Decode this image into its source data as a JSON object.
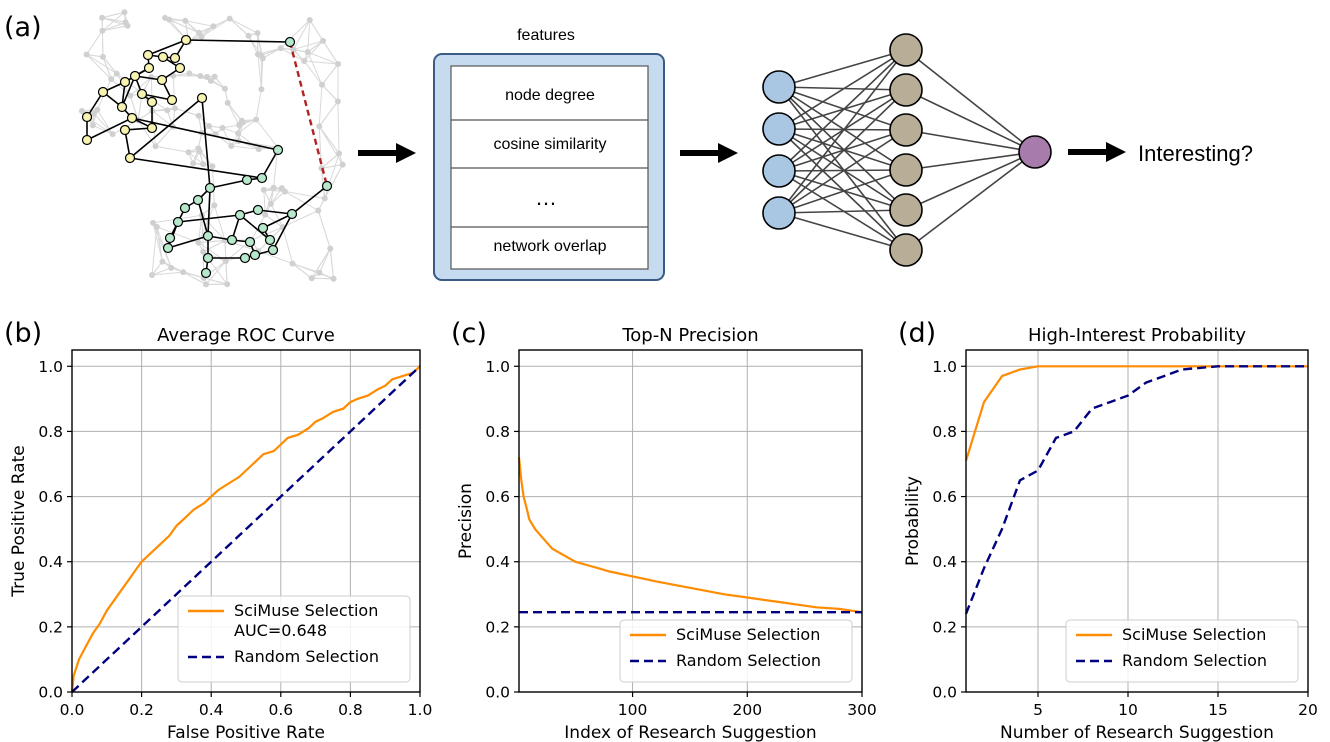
{
  "panel_a": {
    "label": "(a)",
    "features_title": "features",
    "features": [
      "node degree",
      "cosine similarity",
      "…",
      "network overlap"
    ],
    "output_label": "Interesting?",
    "colors": {
      "node_yellow": "#f7f3b0",
      "node_green": "#b8e8cc",
      "missing_edge": "#b22222",
      "input_node": "#a9c6e3",
      "hidden_node": "#b8ae98",
      "output_node": "#a77bab",
      "feature_panel": "#c6dbf0"
    }
  },
  "chart_data": [
    {
      "panel": "(b)",
      "type": "line",
      "title": "Average ROC Curve",
      "xlabel": "False Positive Rate",
      "ylabel": "True Positive Rate",
      "xlim": [
        0,
        1
      ],
      "ylim": [
        0,
        1.05
      ],
      "xticks": [
        0.0,
        0.2,
        0.4,
        0.6,
        0.8,
        1.0
      ],
      "yticks": [
        0.0,
        0.2,
        0.4,
        0.6,
        0.8,
        1.0
      ],
      "tick_labels": [
        "0.0",
        "0.2",
        "0.4",
        "0.6",
        "0.8",
        "1.0"
      ],
      "grid": true,
      "legend": "lower right",
      "series": [
        {
          "name": "SciMuse Selection\nAUC=0.648",
          "color": "#ff8c00",
          "style": "solid",
          "x": [
            0,
            0.005,
            0.02,
            0.04,
            0.06,
            0.08,
            0.1,
            0.12,
            0.14,
            0.16,
            0.18,
            0.2,
            0.22,
            0.24,
            0.26,
            0.28,
            0.3,
            0.32,
            0.35,
            0.38,
            0.4,
            0.42,
            0.45,
            0.48,
            0.5,
            0.52,
            0.55,
            0.58,
            0.6,
            0.62,
            0.65,
            0.68,
            0.7,
            0.72,
            0.75,
            0.78,
            0.8,
            0.82,
            0.85,
            0.88,
            0.9,
            0.92,
            0.95,
            0.98,
            1.0
          ],
          "y": [
            0,
            0.05,
            0.1,
            0.14,
            0.18,
            0.21,
            0.25,
            0.28,
            0.31,
            0.34,
            0.37,
            0.4,
            0.42,
            0.44,
            0.46,
            0.48,
            0.51,
            0.53,
            0.56,
            0.58,
            0.6,
            0.62,
            0.64,
            0.66,
            0.68,
            0.7,
            0.73,
            0.74,
            0.76,
            0.78,
            0.79,
            0.81,
            0.83,
            0.84,
            0.86,
            0.87,
            0.89,
            0.9,
            0.91,
            0.93,
            0.94,
            0.96,
            0.97,
            0.98,
            1.0
          ]
        },
        {
          "name": "Random Selection",
          "color": "#000080",
          "style": "dashed",
          "x": [
            0,
            1
          ],
          "y": [
            0,
            1
          ]
        }
      ]
    },
    {
      "panel": "(c)",
      "type": "line",
      "title": "Top-N Precision",
      "xlabel": "Index of Research Suggestion",
      "ylabel": "Precision",
      "xlim": [
        1,
        300
      ],
      "ylim": [
        0,
        1.05
      ],
      "xticks": [
        100,
        200,
        300
      ],
      "yticks": [
        0.0,
        0.2,
        0.4,
        0.6,
        0.8,
        1.0
      ],
      "tick_labels": [
        "0.0",
        "0.2",
        "0.4",
        "0.6",
        "0.8",
        "1.0"
      ],
      "grid": true,
      "legend": "lower right",
      "series": [
        {
          "name": "SciMuse Selection",
          "color": "#ff8c00",
          "style": "solid",
          "x": [
            1,
            3,
            5,
            8,
            10,
            15,
            20,
            25,
            30,
            40,
            50,
            60,
            70,
            80,
            100,
            120,
            150,
            180,
            200,
            230,
            260,
            280,
            300
          ],
          "y": [
            0.72,
            0.65,
            0.6,
            0.56,
            0.53,
            0.5,
            0.48,
            0.46,
            0.44,
            0.42,
            0.4,
            0.39,
            0.38,
            0.37,
            0.355,
            0.34,
            0.32,
            0.3,
            0.29,
            0.275,
            0.26,
            0.255,
            0.245
          ]
        },
        {
          "name": "Random Selection",
          "color": "#000080",
          "style": "dashed",
          "x": [
            1,
            300
          ],
          "y": [
            0.245,
            0.245
          ]
        }
      ]
    },
    {
      "panel": "(d)",
      "type": "line",
      "title": "High-Interest Probability",
      "xlabel": "Number of Research Suggestion",
      "ylabel": "Probability",
      "xlim": [
        1,
        20
      ],
      "ylim": [
        0,
        1.05
      ],
      "xticks": [
        5,
        10,
        15,
        20
      ],
      "yticks": [
        0.0,
        0.2,
        0.4,
        0.6,
        0.8,
        1.0
      ],
      "tick_labels": [
        "0.0",
        "0.2",
        "0.4",
        "0.6",
        "0.8",
        "1.0"
      ],
      "grid": true,
      "legend": "lower right",
      "series": [
        {
          "name": "SciMuse Selection",
          "color": "#ff8c00",
          "style": "solid",
          "x": [
            1,
            2,
            3,
            4,
            5,
            6,
            7,
            8,
            9,
            10,
            11,
            12,
            13,
            14,
            15,
            16,
            17,
            18,
            19,
            20
          ],
          "y": [
            0.71,
            0.89,
            0.97,
            0.99,
            1.0,
            1.0,
            1.0,
            1.0,
            1.0,
            1.0,
            1.0,
            1.0,
            1.0,
            1.0,
            1.0,
            1.0,
            1.0,
            1.0,
            1.0,
            1.0
          ]
        },
        {
          "name": "Random Selection",
          "color": "#000080",
          "style": "dashed",
          "x": [
            1,
            2,
            3,
            4,
            5,
            6,
            7,
            8,
            9,
            10,
            11,
            12,
            13,
            14,
            15,
            16,
            17,
            18,
            19,
            20
          ],
          "y": [
            0.24,
            0.38,
            0.5,
            0.65,
            0.68,
            0.78,
            0.8,
            0.87,
            0.89,
            0.91,
            0.95,
            0.97,
            0.99,
            0.995,
            1.0,
            1.0,
            1.0,
            1.0,
            1.0,
            1.0
          ]
        }
      ]
    }
  ]
}
